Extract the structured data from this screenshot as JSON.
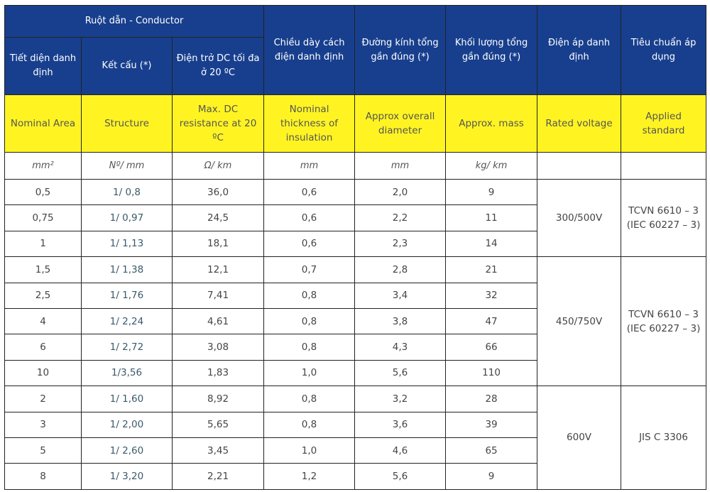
{
  "header": {
    "conductor_group": "Ruột dẫn - Conductor",
    "vi": {
      "nominal_area": "Tiết diện danh định",
      "structure": "Kết cấu (*)",
      "resistance": "Điện trở DC tối đa ở 20 ºC",
      "insulation": "Chiều dày cách điện danh định",
      "diameter": "Đường kính tổng gần đúng (*)",
      "mass": "Khối lượng tổng gần đúng (*)",
      "voltage": "Điện áp danh định",
      "standard": "Tiêu chuẩn áp dụng"
    },
    "en": {
      "nominal_area": "Nominal Area",
      "structure": "Structure",
      "resistance": "Max. DC resistance at 20 ºC",
      "insulation": "Nominal thickness of insulation",
      "diameter": "Approx overall diameter",
      "mass": "Approx. mass",
      "voltage": "Rated voltage",
      "standard": "Applied standard"
    },
    "units": {
      "nominal_area": "mm²",
      "structure": "Nº/ mm",
      "resistance": "Ω/ km",
      "insulation": "mm",
      "diameter": "mm",
      "mass": "kg/ km",
      "voltage": "",
      "standard": ""
    }
  },
  "colors": {
    "header_blue": "#183f8e",
    "header_yellow": "#fff422"
  },
  "groups": [
    {
      "voltage": "300/500V",
      "standard": "TCVN 6610 – 3 (IEC 60227 – 3)",
      "rows": [
        [
          "0,5",
          "1/ 0,8",
          "36,0",
          "0,6",
          "2,0",
          "9"
        ],
        [
          "0,75",
          "1/ 0,97",
          "24,5",
          "0,6",
          "2,2",
          "11"
        ],
        [
          "1",
          "1/ 1,13",
          "18,1",
          "0,6",
          "2,3",
          "14"
        ]
      ]
    },
    {
      "voltage": "450/750V",
      "standard": "TCVN 6610 – 3 (IEC 60227 – 3)",
      "rows": [
        [
          "1,5",
          "1/ 1,38",
          "12,1",
          "0,7",
          "2,8",
          "21"
        ],
        [
          "2,5",
          "1/ 1,76",
          "7,41",
          "0,8",
          "3,4",
          "32"
        ],
        [
          "4",
          "1/ 2,24",
          "4,61",
          "0,8",
          "3,8",
          "47"
        ],
        [
          "6",
          "1/ 2,72",
          "3,08",
          "0,8",
          "4,3",
          "66"
        ],
        [
          "10",
          "1/3,56",
          "1,83",
          "1,0",
          "5,6",
          "110"
        ]
      ]
    },
    {
      "voltage": "600V",
      "standard": "JIS C 3306",
      "rows": [
        [
          "2",
          "1/ 1,60",
          "8,92",
          "0,8",
          "3,2",
          "28"
        ],
        [
          "3",
          "1/ 2,00",
          "5,65",
          "0,8",
          "3,6",
          "39"
        ],
        [
          "5",
          "1/ 2,60",
          "3,45",
          "1,0",
          "4,6",
          "65"
        ],
        [
          "8",
          "1/ 3,20",
          "2,21",
          "1,2",
          "5,6",
          "9"
        ]
      ]
    }
  ]
}
